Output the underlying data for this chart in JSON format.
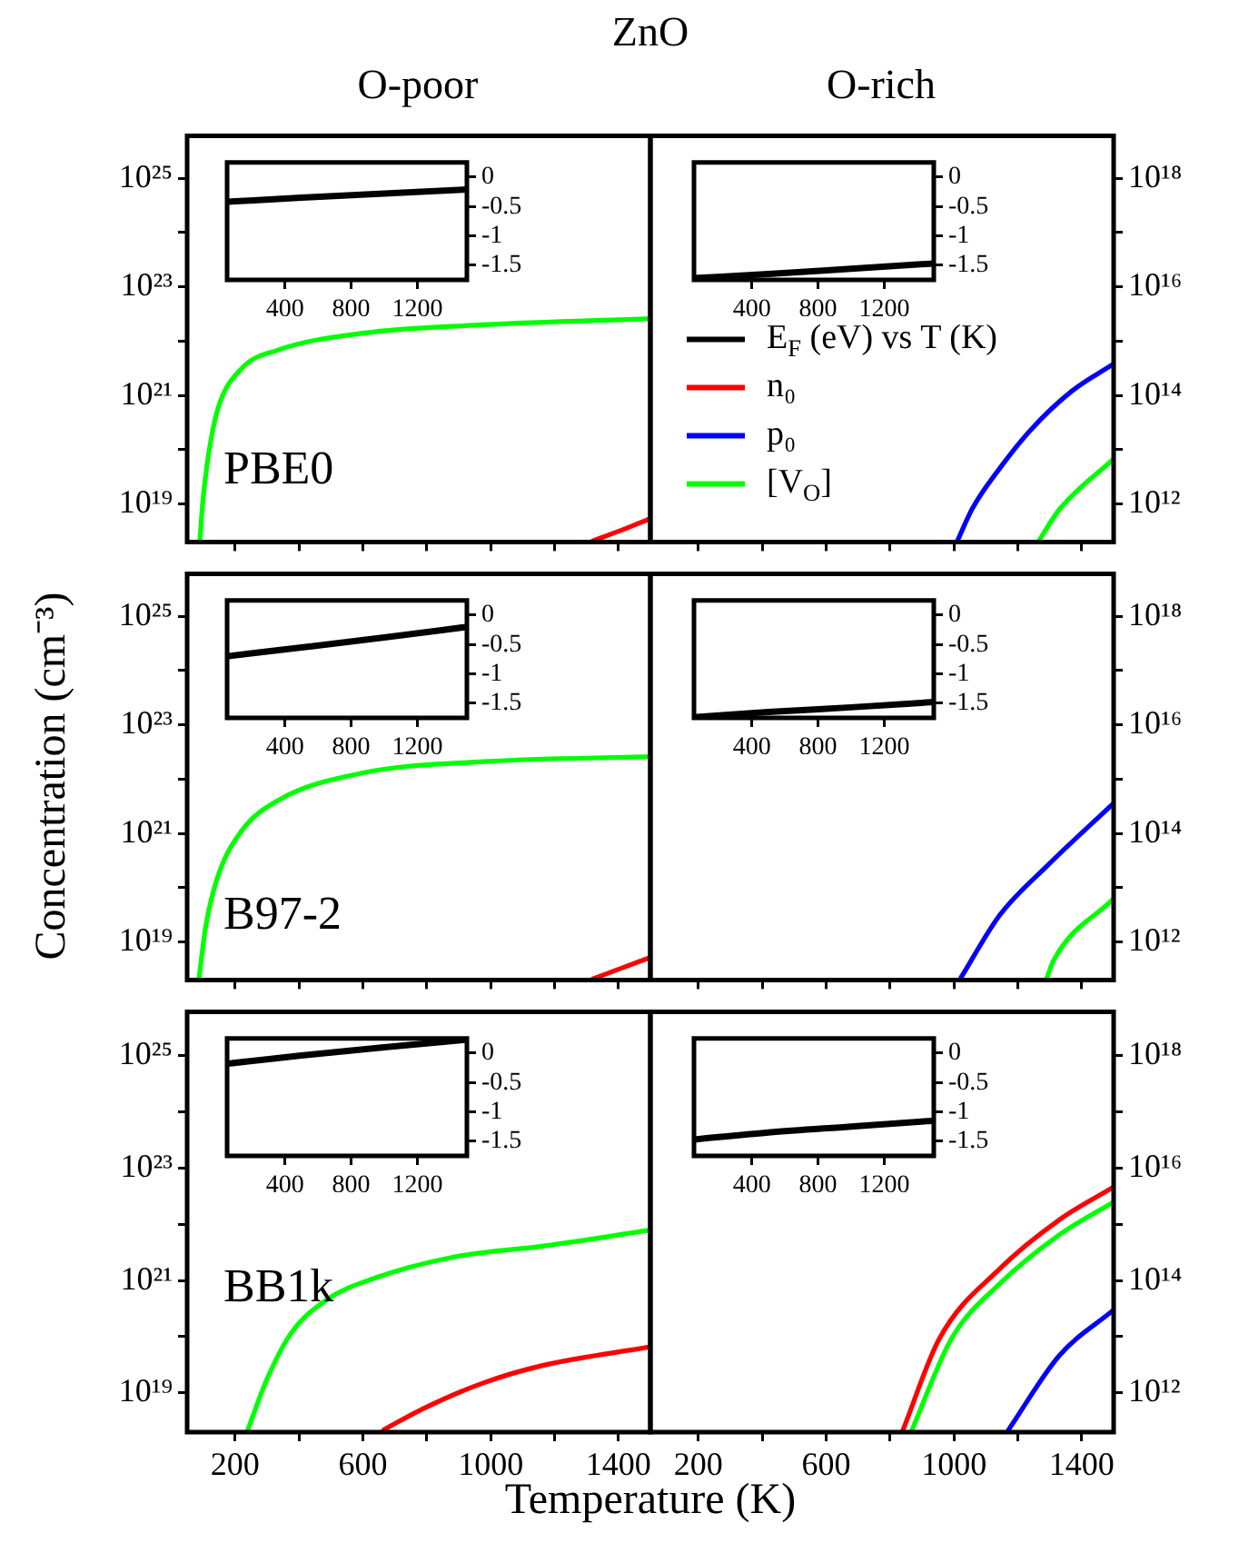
{
  "chart_data": [
    {
      "type": "line",
      "title": "ZnO",
      "subtitle": "O-poor",
      "annotations": [
        "PBE0"
      ],
      "log": "y",
      "xlim": [
        50,
        1500
      ],
      "xticks": [
        200,
        {
          "value": 400,
          "label": null
        },
        600,
        {
          "value": 800,
          "label": null
        },
        1000,
        {
          "value": 1200,
          "label": null
        },
        1400
      ],
      "ylim": [
        2e+18,
        6e+25
      ],
      "yticks": [
        {
          "value": 1e+19,
          "label": "10¹⁹"
        },
        {
          "value": 1e+20,
          "label": null
        },
        {
          "value": 1e+21,
          "label": "10²¹"
        },
        {
          "value": 1e+22,
          "label": null
        },
        {
          "value": 1e+23,
          "label": "10²³"
        },
        {
          "value": 1e+24,
          "label": null
        },
        {
          "value": 1e+25,
          "label": "10²⁵"
        }
      ],
      "tick_labels": "y",
      "series": [
        {
          "color": "#00ff00",
          "x": [
            90,
            99,
            118,
            146,
            220,
            333,
            600,
            978,
            1500
          ],
          "values": [
            2.1e+18,
            1.1e+19,
            8.9e+19,
            5.6e+20,
            3.1e+21,
            6.8e+21,
            1.4e+22,
            2e+22,
            2.6e+22
          ]
        },
        {
          "color": "#ff0000",
          "x": [
            1320,
            1410,
            1500
          ],
          "values": [
            2.1e+18,
            3.3e+18,
            5.4e+18
          ]
        }
      ]
    },
    {
      "type": "line",
      "xlim": [
        50,
        1500
      ],
      "xticks": [
        400,
        800,
        1200
      ],
      "ylim": [
        -1.75,
        0.25
      ],
      "yticks": [
        0,
        -0.5,
        -1,
        -1.5
      ],
      "series": [
        {
          "color": "#000000",
          "x": [
            50,
            500,
            1000,
            1500
          ],
          "values": [
            -0.42,
            -0.35,
            -0.28,
            -0.21
          ]
        }
      ]
    },
    {
      "type": "line",
      "subtitle": "O-rich",
      "log": "y2",
      "legend": "bottom left",
      "xlim": [
        50,
        1500
      ],
      "xticks": [
        200,
        {
          "value": 400,
          "label": null
        },
        600,
        {
          "value": 800,
          "label": null
        },
        1000,
        {
          "value": 1200,
          "label": null
        },
        1400
      ],
      "y2lim": [
        200000000000.0,
        6e+18
      ],
      "y2ticks": [
        {
          "value": 1000000000000.0,
          "label": "10¹²"
        },
        {
          "value": 10000000000000.0,
          "label": null
        },
        {
          "value": 100000000000000.0,
          "label": "10¹⁴"
        },
        {
          "value": 1000000000000000.0,
          "label": null
        },
        {
          "value": 1e+16,
          "label": "10¹⁶"
        },
        {
          "value": 1e+17,
          "label": null
        },
        {
          "value": 1e+18,
          "label": "10¹⁸"
        }
      ],
      "tick_labels": "y",
      "series": [
        {
          "name": "E$_{F}$ (eV) vs T (K)",
          "color": "#000000",
          "axis": "y2"
        },
        {
          "name": "n₀",
          "color": "#ff0000",
          "axis": "y2"
        },
        {
          "name": "p₀",
          "color": "#0000ff",
          "axis": "y2",
          "x": [
            1011,
            1058,
            1143,
            1237,
            1369,
            1500
          ],
          "values": [
            210000000000.0,
            830000000000.0,
            4500000000000.0,
            22000000000000.0,
            120000000000000.0,
            380000000000000.0
          ]
        },
        {
          "name": "[V$_{O}$]",
          "color": "#00ff00",
          "axis": "y2",
          "x": [
            1266,
            1330,
            1500
          ],
          "values": [
            210000000000.0,
            790000000000.0,
            6800000000000.0
          ]
        }
      ]
    },
    {
      "type": "line",
      "xlim": [
        50,
        1500
      ],
      "xticks": [
        400,
        800,
        1200
      ],
      "ylim": [
        -1.75,
        0.25
      ],
      "yticks": [
        0,
        -0.5,
        -1,
        -1.5
      ],
      "series": [
        {
          "color": "#000000",
          "x": [
            50,
            500,
            1000,
            1500
          ],
          "values": [
            -1.72,
            -1.65,
            -1.56,
            -1.47
          ]
        }
      ]
    },
    {
      "type": "line",
      "ylabel": "Concentration (cm⁻³)",
      "annotations": [
        "B97-2"
      ],
      "log": "y",
      "xlim": [
        50,
        1500
      ],
      "xticks": [
        200,
        {
          "value": 400,
          "label": null
        },
        600,
        {
          "value": 800,
          "label": null
        },
        1000,
        {
          "value": 1200,
          "label": null
        },
        1400
      ],
      "ylim": [
        2e+18,
        6e+25
      ],
      "yticks": [
        {
          "value": 1e+19,
          "label": "10¹⁹"
        },
        {
          "value": 1e+20,
          "label": null
        },
        {
          "value": 1e+21,
          "label": "10²¹"
        },
        {
          "value": 1e+22,
          "label": null
        },
        {
          "value": 1e+23,
          "label": "10²³"
        },
        {
          "value": 1e+24,
          "label": null
        },
        {
          "value": 1e+25,
          "label": "10²⁵"
        }
      ],
      "tick_labels": "y",
      "series": [
        {
          "color": "#00ff00",
          "x": [
            87,
            108,
            146,
            220,
            333,
            600,
            978,
            1500
          ],
          "values": [
            2.1e+18,
            1.9e+19,
            1.6e+20,
            1.1e+21,
            4e+21,
            1.3e+22,
            2.1e+22,
            2.6e+22
          ]
        },
        {
          "color": "#ff0000",
          "x": [
            1320,
            1410,
            1500
          ],
          "values": [
            2.1e+18,
            3.3e+18,
            5.2e+18
          ]
        }
      ]
    },
    {
      "type": "line",
      "xlim": [
        50,
        1500
      ],
      "xticks": [
        400,
        800,
        1200
      ],
      "ylim": [
        -1.75,
        0.25
      ],
      "yticks": [
        0,
        -0.5,
        -1,
        -1.5
      ],
      "series": [
        {
          "color": "#000000",
          "x": [
            50,
            500,
            1000,
            1500
          ],
          "values": [
            -0.7,
            -0.55,
            -0.38,
            -0.2
          ]
        }
      ]
    },
    {
      "type": "line",
      "log": "y2",
      "xlim": [
        50,
        1500
      ],
      "xticks": [
        200,
        {
          "value": 400,
          "label": null
        },
        600,
        {
          "value": 800,
          "label": null
        },
        1000,
        {
          "value": 1200,
          "label": null
        },
        1400
      ],
      "y2lim": [
        200000000000.0,
        6e+18
      ],
      "y2ticks": [
        {
          "value": 1000000000000.0,
          "label": "10¹²"
        },
        {
          "value": 10000000000000.0,
          "label": null
        },
        {
          "value": 100000000000000.0,
          "label": "10¹⁴"
        },
        {
          "value": 1000000000000000.0,
          "label": null
        },
        {
          "value": 1e+16,
          "label": "10¹⁶"
        },
        {
          "value": 1e+17,
          "label": null
        },
        {
          "value": 1e+18,
          "label": "10¹⁸"
        }
      ],
      "tick_labels": "y",
      "series": [
        {
          "color": "#0000ff",
          "axis": "y2",
          "x": [
            1020,
            1143,
            1294,
            1500
          ],
          "values": [
            210000000000.0,
            3100000000000.0,
            26000000000000.0,
            360000000000000.0
          ]
        },
        {
          "color": "#00ff00",
          "axis": "y2",
          "x": [
            1290,
            1313,
            1500
          ],
          "values": [
            210000000000.0,
            470000000000.0,
            6300000000000.0
          ]
        }
      ]
    },
    {
      "type": "line",
      "xlim": [
        50,
        1500
      ],
      "xticks": [
        400,
        800,
        1200
      ],
      "ylim": [
        -1.75,
        0.25
      ],
      "yticks": [
        0,
        -0.5,
        -1,
        -1.5
      ],
      "series": [
        {
          "color": "#000000",
          "x": [
            50,
            500,
            1000,
            1500
          ],
          "values": [
            -1.74,
            -1.65,
            -1.57,
            -1.48
          ]
        }
      ]
    },
    {
      "type": "line",
      "xlabel": "Temperature (K)",
      "annotations": [
        "BB1k"
      ],
      "log": "y",
      "xlim": [
        50,
        1500
      ],
      "xticks": [
        200,
        {
          "value": 400,
          "label": null
        },
        600,
        {
          "value": 800,
          "label": null
        },
        1000,
        {
          "value": 1200,
          "label": null
        },
        1400
      ],
      "ylim": [
        2e+18,
        6e+25
      ],
      "yticks": [
        {
          "value": 1e+19,
          "label": "10¹⁹"
        },
        {
          "value": 1e+20,
          "label": null
        },
        {
          "value": 1e+21,
          "label": "10²¹"
        },
        {
          "value": 1e+22,
          "label": null
        },
        {
          "value": 1e+23,
          "label": "10²³"
        },
        {
          "value": 1e+24,
          "label": null
        },
        {
          "value": 1e+25,
          "label": "10²⁵"
        }
      ],
      "series": [
        {
          "color": "#00ff00",
          "x": [
            240,
            297,
            373,
            486,
            637,
            882,
            1166,
            1500
          ],
          "values": [
            2.2e+18,
            1.6e+19,
            1.1e+20,
            4.5e+20,
            1.1e+21,
            2.6e+21,
            4.1e+21,
            7.9e+21
          ]
        },
        {
          "color": "#ff0000",
          "x": [
            665,
            788,
            977,
            1166,
            1500
          ],
          "values": [
            2.2e+18,
            5.2e+18,
            1.5e+19,
            3.1e+19,
            6.6e+19
          ]
        }
      ]
    },
    {
      "type": "line",
      "xlim": [
        50,
        1500
      ],
      "xticks": [
        400,
        800,
        1200
      ],
      "ylim": [
        -1.75,
        0.25
      ],
      "yticks": [
        0,
        -0.5,
        -1,
        -1.5
      ],
      "series": [
        {
          "color": "#000000",
          "x": [
            50,
            500,
            1000,
            1500
          ],
          "values": [
            -0.18,
            -0.04,
            0.1,
            0.23
          ]
        }
      ]
    },
    {
      "type": "line",
      "log": "y2",
      "xlim": [
        50,
        1500
      ],
      "xticks": [
        200,
        {
          "value": 400,
          "label": null
        },
        600,
        {
          "value": 800,
          "label": null
        },
        1000,
        {
          "value": 1200,
          "label": null
        },
        1400
      ],
      "y2lim": [
        200000000000.0,
        6e+18
      ],
      "y2ticks": [
        {
          "value": 1000000000000.0,
          "label": "10¹²"
        },
        {
          "value": 10000000000000.0,
          "label": null
        },
        {
          "value": 100000000000000.0,
          "label": "10¹⁴"
        },
        {
          "value": 1000000000000000.0,
          "label": null
        },
        {
          "value": 1e+16,
          "label": "10¹⁶"
        },
        {
          "value": 1e+17,
          "label": null
        },
        {
          "value": 1e+18,
          "label": "10¹⁸"
        }
      ],
      "series": [
        {
          "color": "#ff0000",
          "axis": "y2",
          "x": [
            841,
            954,
            1143,
            1330,
            1500
          ],
          "values": [
            220000000000.0,
            9100000000000.0,
            160000000000000.0,
            1200000000000000.0,
            4600000000000000.0
          ]
        },
        {
          "color": "#00ff00",
          "axis": "y2",
          "x": [
            869,
            992,
            1143,
            1330,
            1500
          ],
          "values": [
            220000000000.0,
            9100000000000.0,
            87000000000000.0,
            650000000000000.0,
            2500000000000000.0
          ]
        },
        {
          "color": "#0000ff",
          "axis": "y2",
          "x": [
            1171,
            1330,
            1500
          ],
          "values": [
            220000000000.0,
            4600000000000.0,
            30000000000000.0
          ]
        }
      ]
    },
    {
      "type": "line",
      "xlim": [
        50,
        1500
      ],
      "xticks": [
        400,
        800,
        1200
      ],
      "ylim": [
        -1.75,
        0.25
      ],
      "yticks": [
        0,
        -0.5,
        -1,
        -1.5
      ],
      "series": [
        {
          "color": "#000000",
          "x": [
            50,
            500,
            1000,
            1500
          ],
          "values": [
            -1.47,
            -1.35,
            -1.25,
            -1.15
          ]
        }
      ]
    }
  ]
}
